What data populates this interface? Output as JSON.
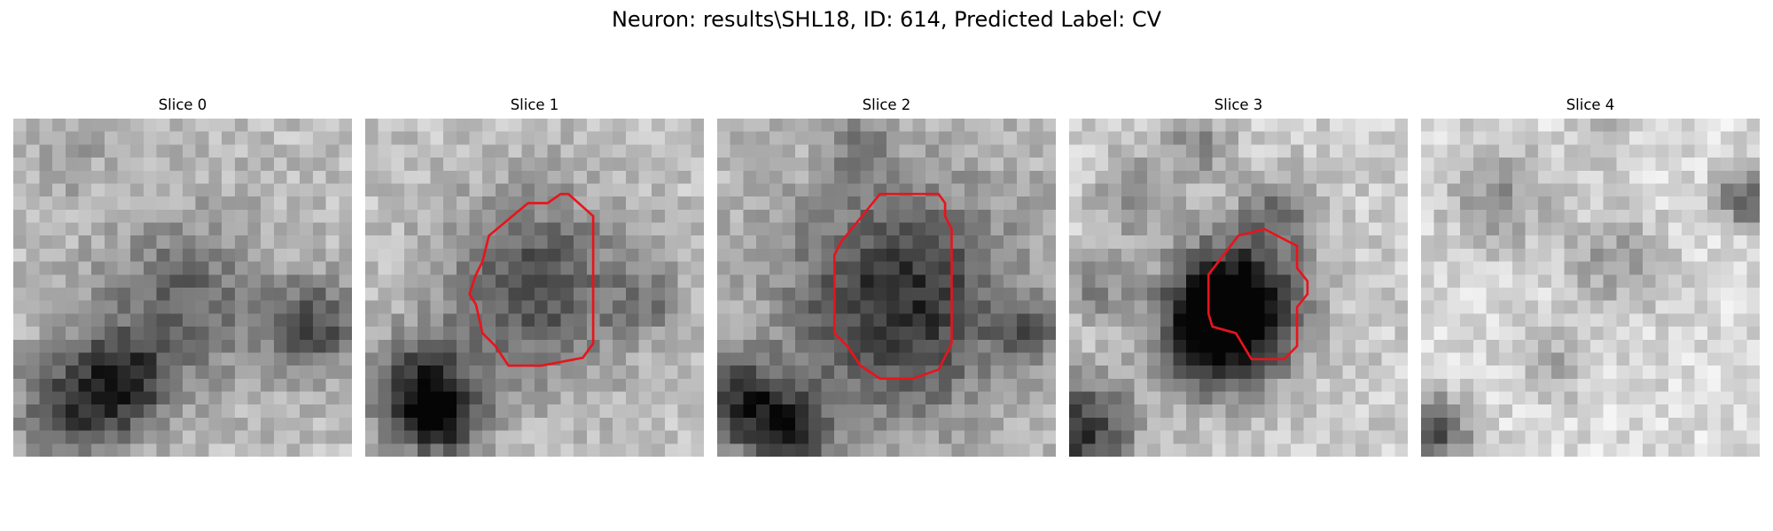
{
  "figure": {
    "title": "Neuron: results\\SHL18, ID: 614, Predicted Label: CV"
  },
  "colors": {
    "background": "#ffffff",
    "contour": "#e8141c"
  },
  "colormap": "grayscale",
  "grid_size": 26,
  "slices": [
    {
      "title": "Slice 0",
      "has_contour": false
    },
    {
      "title": "Slice 1",
      "has_contour": true
    },
    {
      "title": "Slice 2",
      "has_contour": true
    },
    {
      "title": "Slice 3",
      "has_contour": true
    },
    {
      "title": "Slice 4",
      "has_contour": false
    }
  ]
}
